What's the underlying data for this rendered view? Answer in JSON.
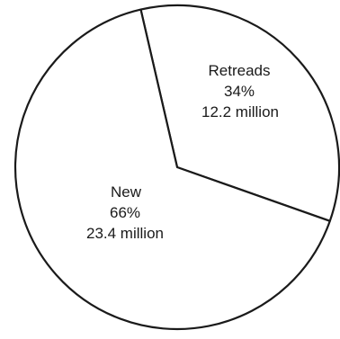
{
  "chart_data": {
    "type": "pie",
    "categories": [
      "Retreads",
      "New"
    ],
    "values": [
      34,
      66
    ],
    "value_unit": "%",
    "counts": [
      "12.2 million",
      "23.4 million"
    ],
    "labels": [
      {
        "name": "Retreads",
        "percent": "34%",
        "amount": "12.2 million"
      },
      {
        "name": "New",
        "percent": "66%",
        "amount": "23.4 million"
      }
    ],
    "start_direction": "straight up",
    "direction": "clockwise",
    "colors": {
      "fill": "#ffffff",
      "stroke": "#1a1a1a"
    },
    "legend": "none"
  }
}
